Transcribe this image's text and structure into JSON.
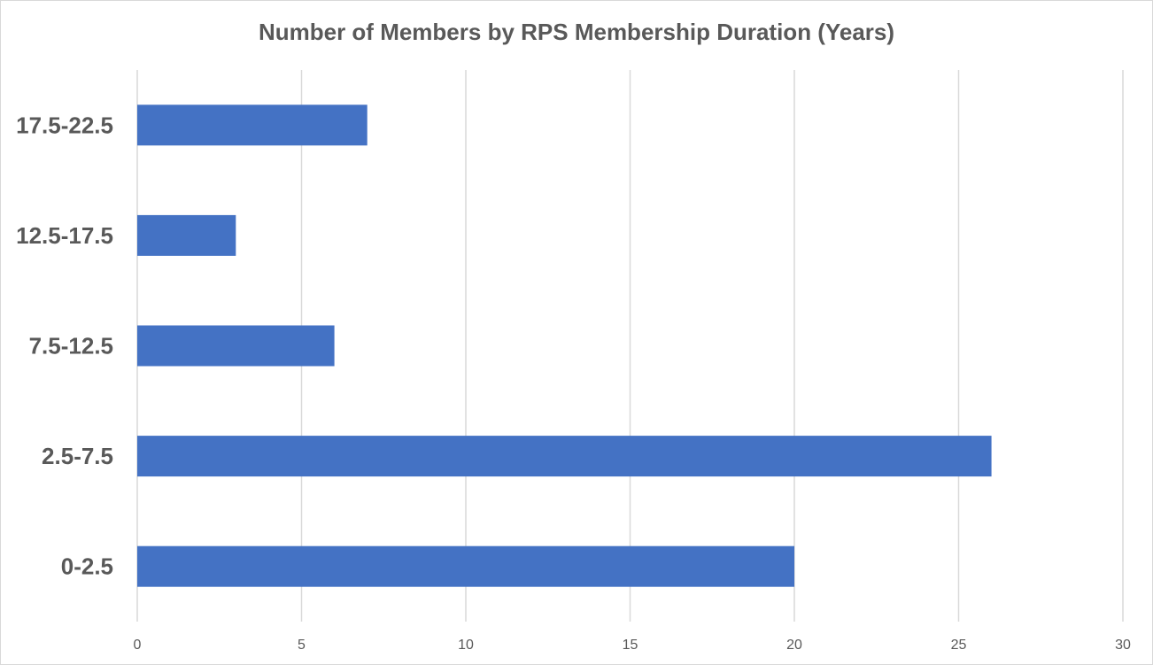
{
  "chart_data": {
    "type": "bar",
    "orientation": "horizontal",
    "title": "Number of Members by RPS Membership Duration (Years)",
    "xlabel": "",
    "ylabel": "",
    "categories": [
      "0-2.5",
      "2.5-7.5",
      "7.5-12.5",
      "12.5-17.5",
      "17.5-22.5"
    ],
    "values": [
      20,
      26,
      6,
      3,
      7
    ],
    "xlim": [
      0,
      30
    ],
    "xticks": [
      "0",
      "5",
      "10",
      "15",
      "20",
      "25",
      "30"
    ],
    "grid": "vertical",
    "legend": "none",
    "bar_color": "#4472C4"
  }
}
